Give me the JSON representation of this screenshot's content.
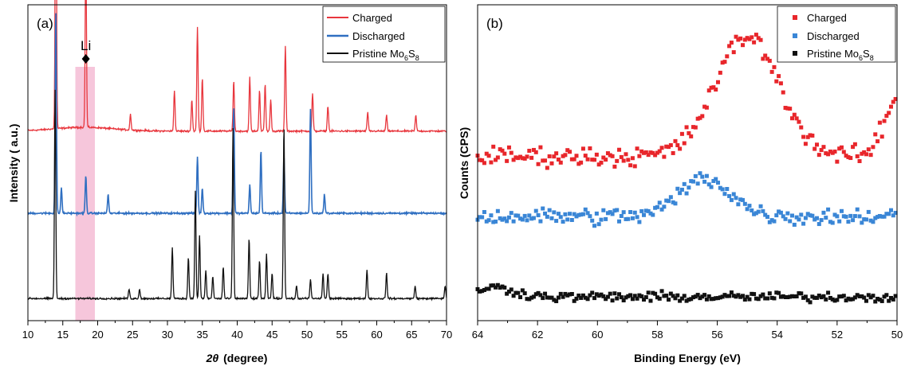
{
  "chart_data": [
    {
      "type": "line",
      "panel_label": "(a)",
      "xlabel_symbol": "2θ",
      "xlabel_unit": "(degree)",
      "ylabel": "Intensity ( a.u.)",
      "xlim": [
        10,
        70
      ],
      "x_ticks": [
        10,
        15,
        20,
        25,
        30,
        35,
        40,
        45,
        50,
        55,
        60,
        65,
        70
      ],
      "y_ticks": [],
      "annotation": {
        "text": "Li",
        "marker": "diamond",
        "x": 18.3
      },
      "highlight_band": {
        "x_range": [
          16.8,
          19.6
        ],
        "color": "#f6c6db"
      },
      "legend": {
        "position": "top-right"
      },
      "series": [
        {
          "name": "Charged",
          "color": "#e8363d",
          "baseline": 0.6,
          "peaks": [
            [
              14.0,
              0.97
            ],
            [
              18.3,
              0.55
            ],
            [
              24.7,
              0.05
            ],
            [
              31.0,
              0.13
            ],
            [
              33.5,
              0.1
            ],
            [
              34.3,
              0.33
            ],
            [
              35.0,
              0.17
            ],
            [
              39.5,
              0.16
            ],
            [
              41.8,
              0.17
            ],
            [
              43.2,
              0.13
            ],
            [
              44.0,
              0.15
            ],
            [
              44.8,
              0.1
            ],
            [
              46.9,
              0.27
            ],
            [
              50.8,
              0.12
            ],
            [
              53.0,
              0.08
            ],
            [
              58.7,
              0.06
            ],
            [
              61.4,
              0.05
            ],
            [
              65.6,
              0.05
            ]
          ]
        },
        {
          "name": "Discharged",
          "color": "#2f6fc1",
          "baseline": 0.34,
          "peaks": [
            [
              14.0,
              0.65
            ],
            [
              14.8,
              0.08
            ],
            [
              18.3,
              0.12
            ],
            [
              21.5,
              0.06
            ],
            [
              34.3,
              0.18
            ],
            [
              35.0,
              0.08
            ],
            [
              39.5,
              0.34
            ],
            [
              41.8,
              0.09
            ],
            [
              43.4,
              0.2
            ],
            [
              46.7,
              0.18
            ],
            [
              50.5,
              0.33
            ],
            [
              52.5,
              0.06
            ]
          ]
        },
        {
          "name": "Pristine Mo6S8",
          "color": "#111111",
          "baseline": 0.07,
          "peaks": [
            [
              13.9,
              0.66
            ],
            [
              24.5,
              0.03
            ],
            [
              26.0,
              0.03
            ],
            [
              30.7,
              0.16
            ],
            [
              33.0,
              0.13
            ],
            [
              34.0,
              0.34
            ],
            [
              34.6,
              0.2
            ],
            [
              35.5,
              0.09
            ],
            [
              36.5,
              0.07
            ],
            [
              38.0,
              0.1
            ],
            [
              39.4,
              0.54
            ],
            [
              41.7,
              0.19
            ],
            [
              43.2,
              0.12
            ],
            [
              44.2,
              0.14
            ],
            [
              45.0,
              0.08
            ],
            [
              46.7,
              0.55
            ],
            [
              48.5,
              0.04
            ],
            [
              50.5,
              0.06
            ],
            [
              52.3,
              0.08
            ],
            [
              53.0,
              0.08
            ],
            [
              58.6,
              0.09
            ],
            [
              61.4,
              0.08
            ],
            [
              65.5,
              0.04
            ],
            [
              69.8,
              0.04
            ]
          ]
        }
      ]
    },
    {
      "type": "scatter",
      "panel_label": "(b)",
      "xlabel": "Binding Energy (eV)",
      "ylabel": "Counts (CPS)",
      "xlim": [
        64,
        50
      ],
      "x_reversed": true,
      "x_ticks": [
        64,
        62,
        60,
        58,
        56,
        54,
        52,
        50
      ],
      "y_ticks": [],
      "legend": {
        "position": "top-right"
      },
      "series": [
        {
          "name": "Charged",
          "color": "#e8262b",
          "baseline": 0.52,
          "peak_center": 55.0,
          "peak_height": 0.38,
          "peak_width": 1.5,
          "extra": [
            [
              50.0,
              0.18,
              0.6
            ]
          ],
          "noise": 0.045
        },
        {
          "name": "Discharged",
          "color": "#3a86d6",
          "baseline": 0.33,
          "peak_center": 56.4,
          "peak_height": 0.12,
          "peak_width": 1.2,
          "extra": [],
          "noise": 0.04
        },
        {
          "name": "Pristine Mo6S8",
          "color": "#111111",
          "baseline": 0.075,
          "peak_center": 57.0,
          "peak_height": 0.0,
          "peak_width": 1.0,
          "extra": [
            [
              63.5,
              0.03,
              1.0
            ]
          ],
          "noise": 0.022
        }
      ]
    }
  ],
  "legend_labels": {
    "a": {
      "charged": "Charged",
      "discharged": "Discharged",
      "pristine_prefix": "Pristine Mo",
      "pristine_sub1": "6",
      "pristine_mid": "S",
      "pristine_sub2": "8"
    },
    "b": {
      "charged": "Charged",
      "discharged": "Discharged",
      "pristine_prefix": "Pristine Mo",
      "pristine_sub1": "6",
      "pristine_mid": "S",
      "pristine_sub2": "8"
    }
  }
}
